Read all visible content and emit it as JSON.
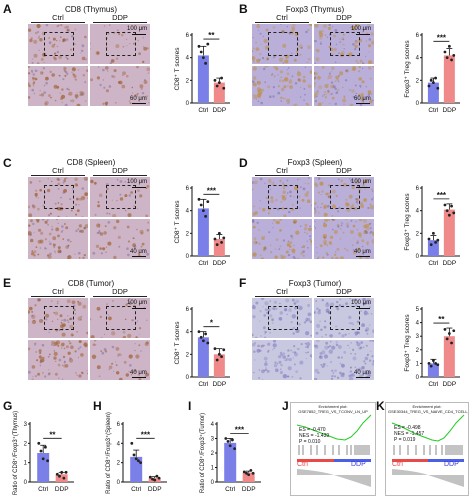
{
  "panels": {
    "A": {
      "letter": "A",
      "title": "CD8 (Thymus)",
      "groups": [
        "Ctrl",
        "DDP"
      ],
      "scale_top": "100 μm",
      "scale_bottom": "60 μm"
    },
    "B": {
      "letter": "B",
      "title": "Foxp3 (Thymus)",
      "groups": [
        "Ctrl",
        "DDP"
      ],
      "scale_top": "100 μm",
      "scale_bottom": "60 μm"
    },
    "C": {
      "letter": "C",
      "title": "CD8 (Spleen)",
      "groups": [
        "Ctrl",
        "DDP"
      ],
      "scale_top": "100 μm",
      "scale_bottom": "40 μm"
    },
    "D": {
      "letter": "D",
      "title": "Foxp3 (Spleen)",
      "groups": [
        "Ctrl",
        "DDP"
      ],
      "scale_top": "100 μm",
      "scale_bottom": "40 μm"
    },
    "E": {
      "letter": "E",
      "title": "CD8 (Tumor)",
      "groups": [
        "Ctrl",
        "DDP"
      ],
      "scale_top": "100 μm",
      "scale_bottom": "40 μm"
    },
    "F": {
      "letter": "F",
      "title": "Foxp3 (Tumor)",
      "groups": [
        "Ctrl",
        "DDP"
      ],
      "scale_top": "100 μm",
      "scale_bottom": "40 μm"
    },
    "G": {
      "letter": "G"
    },
    "H": {
      "letter": "H"
    },
    "I": {
      "letter": "I"
    },
    "J": {
      "letter": "J",
      "title": "Enrichment plot: GSE7852_TREG_VS_TCONV_LN_UP",
      "stats": [
        "ES = -0.470",
        "NES = -1.439",
        "P = 0.010"
      ],
      "left_label": "Ctrl",
      "right_label": "DDP"
    },
    "K": {
      "letter": "K",
      "title": "Enrichment plot: GSE30344_TREG_VS_NAIVE_CD4_TCELL_UP",
      "stats": [
        "ES = -0.498",
        "NES = -1.457",
        "P = 0.019"
      ],
      "left_label": "Ctrl",
      "right_label": "DDP"
    }
  },
  "colors": {
    "ctrl": "#7b7fe8",
    "ddp": "#f08a8a",
    "stain_cd8": "#c49a7c",
    "stain_foxp3": "#9d8fc8",
    "gsea_line": "#22cc22"
  },
  "chart_data": [
    {
      "id": "A",
      "type": "bar",
      "categories": [
        "Ctrl",
        "DDP"
      ],
      "values": [
        4.2,
        1.8
      ],
      "points": [
        [
          5,
          4.5,
          4,
          3.5,
          5.2
        ],
        [
          2,
          1.5,
          1.8,
          2.2,
          1.3
        ]
      ],
      "errors": [
        0.8,
        0.4
      ],
      "ylabel": "CD8⁺ T scores",
      "ylim": [
        0,
        6
      ],
      "yticks": [
        0,
        2,
        4,
        6
      ],
      "significance": "**"
    },
    {
      "id": "B",
      "type": "bar",
      "categories": [
        "Ctrl",
        "DDP"
      ],
      "values": [
        1.8,
        4.2
      ],
      "points": [
        [
          1.5,
          2,
          1.8,
          2.2,
          1.3
        ],
        [
          4.5,
          4,
          5,
          3.8,
          4.2
        ]
      ],
      "errors": [
        0.4,
        0.6
      ],
      "ylabel": "Foxp3⁺ Treg scores",
      "ylim": [
        0,
        6
      ],
      "yticks": [
        0,
        2,
        4,
        6
      ],
      "significance": "***"
    },
    {
      "id": "C",
      "type": "bar",
      "categories": [
        "Ctrl",
        "DDP"
      ],
      "values": [
        4.2,
        1.5
      ],
      "points": [
        [
          5,
          4.5,
          4,
          3.5,
          4.8
        ],
        [
          1.5,
          1,
          2,
          1.2,
          1.6
        ]
      ],
      "errors": [
        0.8,
        0.4
      ],
      "ylabel": "CD8⁺ T scores",
      "ylim": [
        0,
        6
      ],
      "yticks": [
        0,
        2,
        4,
        6
      ],
      "significance": "***"
    },
    {
      "id": "D",
      "type": "bar",
      "categories": [
        "Ctrl",
        "DDP"
      ],
      "values": [
        1.4,
        4.1
      ],
      "points": [
        [
          1.5,
          1,
          2,
          1.2,
          1.4
        ],
        [
          4.5,
          4,
          3.6,
          4.4,
          3.8
        ]
      ],
      "errors": [
        0.4,
        0.5
      ],
      "ylabel": "Foxp3⁺ Treg scores",
      "ylim": [
        0,
        6
      ],
      "yticks": [
        0,
        2,
        4,
        6
      ],
      "significance": "***"
    },
    {
      "id": "E",
      "type": "bar",
      "categories": [
        "Ctrl",
        "DDP"
      ],
      "values": [
        3.5,
        2
      ],
      "points": [
        [
          4,
          3.5,
          3.2,
          3.8,
          3
        ],
        [
          2.5,
          1.5,
          2,
          1.8,
          2.4
        ]
      ],
      "errors": [
        0.5,
        0.5
      ],
      "ylabel": "CD8⁺ T scores",
      "ylim": [
        0,
        6
      ],
      "yticks": [
        0,
        2,
        4,
        6
      ],
      "significance": "*"
    },
    {
      "id": "F",
      "type": "bar",
      "categories": [
        "Ctrl",
        "DDP"
      ],
      "values": [
        1,
        3
      ],
      "points": [
        [
          1,
          0.8,
          1.2,
          1,
          0.9
        ],
        [
          3.5,
          2.8,
          3.2,
          2.5,
          3.4
        ]
      ],
      "errors": [
        0.3,
        0.6
      ],
      "ylabel": "Foxp3⁺ Treg scores",
      "ylim": [
        0,
        5
      ],
      "yticks": [
        0,
        1,
        2,
        3,
        4,
        5
      ],
      "significance": "**"
    },
    {
      "id": "G",
      "type": "bar",
      "categories": [
        "Ctrl",
        "DDP"
      ],
      "values": [
        1.5,
        0.4
      ],
      "points": [
        [
          2,
          1.6,
          1.2,
          1.8,
          1.1
        ],
        [
          0.4,
          0.3,
          0.5,
          0.2,
          0.5
        ]
      ],
      "errors": [
        0.4,
        0.1
      ],
      "ylabel": "Ratio of CD8⁺/Foxp3⁺(Thymus)",
      "ylim": [
        0,
        3
      ],
      "yticks": [
        0,
        1,
        2,
        3
      ],
      "significance": "**"
    },
    {
      "id": "H",
      "type": "bar",
      "categories": [
        "Ctrl",
        "DDP"
      ],
      "values": [
        2.6,
        0.4
      ],
      "points": [
        [
          4,
          2.8,
          2.4,
          2.2,
          2
        ],
        [
          0.5,
          0.3,
          0.2,
          0.6,
          0.4
        ]
      ],
      "errors": [
        0.7,
        0.15
      ],
      "ylabel": "Ratio of CD8⁺/Foxp3⁺(Spleen)",
      "ylim": [
        0,
        6
      ],
      "yticks": [
        0,
        2,
        4,
        6
      ],
      "significance": "***"
    },
    {
      "id": "I",
      "type": "bar",
      "categories": [
        "Ctrl",
        "DDP"
      ],
      "values": [
        2.7,
        0.65
      ],
      "points": [
        [
          3,
          2.8,
          2.5,
          2.9,
          2.3
        ],
        [
          0.7,
          0.6,
          0.5,
          0.8,
          0.6
        ]
      ],
      "errors": [
        0.3,
        0.1
      ],
      "ylabel": "Ratio of CD8⁺/Foxp3⁺(Tumor)",
      "ylim": [
        0,
        4
      ],
      "yticks": [
        0,
        1,
        2,
        3,
        4
      ],
      "significance": "***"
    }
  ]
}
